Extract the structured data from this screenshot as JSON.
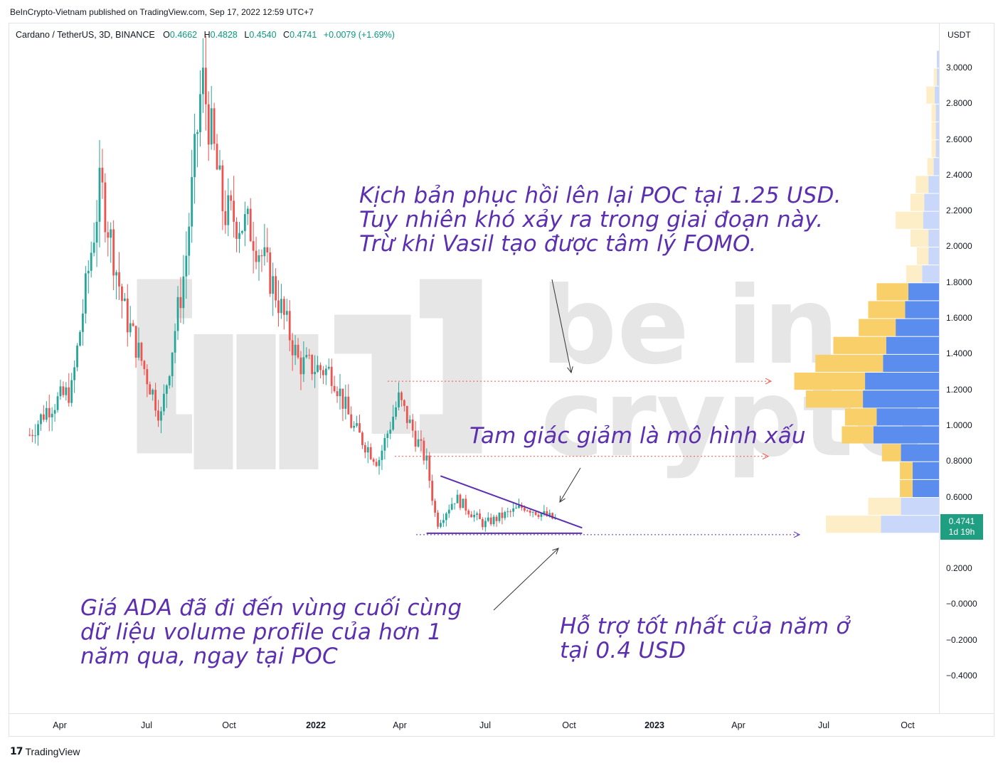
{
  "header": {
    "published_by": "BeInCrypto-Vietnam published on TradingView.com, Sep 17, 2022 12:59 UTC+7"
  },
  "legend": {
    "symbol": "Cardano / TetherUS, 3D, BINANCE",
    "open_label": "O",
    "open": "0.4662",
    "high_label": "H",
    "high": "0.4828",
    "low_label": "L",
    "low": "0.4540",
    "close_label": "C",
    "close": "0.4741",
    "change": "+0.0079 (+1.69%)"
  },
  "colors": {
    "up": "#26a69a",
    "down": "#ef5350",
    "annotation": "#5b2fb0",
    "vp_up": "#5b8def",
    "vp_down": "#f9cf6a",
    "price_tag": "#1f9e82"
  },
  "price_tag": {
    "price": "0.4741",
    "countdown": "1d 19h"
  },
  "annotations": {
    "top": "Kịch bản phục hồi lên lại POC tại 1.25 USD. Tuy nhiên khó xảy ra trong giai đoạn này. Trừ khi Vasil tạo được tâm lý FOMO.",
    "triangle": "Tam giác giảm là mô hình xấu",
    "bottom_left": "Giá ADA đã đi đến vùng cuối cùng dữ liệu volume profile của hơn 1 năm qua, ngay tại POC",
    "bottom_right": "Hỗ trợ tốt nhất của năm ở tại 0.4 USD"
  },
  "footer": {
    "brand": "TradingView"
  },
  "watermark": {
    "text": "be in crypto"
  },
  "chart_data": {
    "type": "candlestick",
    "symbol": "ADAUSDT",
    "interval": "3D",
    "exchange": "BINANCE",
    "currency": "USDT",
    "y_ticks": [
      "3.0000",
      "2.8000",
      "2.6000",
      "2.4000",
      "2.2000",
      "2.0000",
      "1.8000",
      "1.6000",
      "1.4000",
      "1.2000",
      "1.0000",
      "0.8000",
      "0.6000",
      "0.2000",
      "−0.0000",
      "−0.2000",
      "−0.4000"
    ],
    "x_ticks": [
      "Apr",
      "Jul",
      "Oct",
      "2022",
      "Apr",
      "Jul",
      "Oct",
      "2023",
      "Apr",
      "Jul",
      "Oct"
    ],
    "ylim": [
      -0.45,
      3.15
    ],
    "trend_path": [
      {
        "date": "2021-03-01",
        "price": 0.95
      },
      {
        "date": "2021-03-20",
        "price": 1.1
      },
      {
        "date": "2021-04-15",
        "price": 1.2
      },
      {
        "date": "2021-05-16",
        "price": 2.35
      },
      {
        "date": "2021-06-10",
        "price": 1.65
      },
      {
        "date": "2021-07-20",
        "price": 1.05
      },
      {
        "date": "2021-08-15",
        "price": 1.9
      },
      {
        "date": "2021-09-02",
        "price": 2.95
      },
      {
        "date": "2021-09-25",
        "price": 2.2
      },
      {
        "date": "2021-10-25",
        "price": 2.1
      },
      {
        "date": "2021-11-20",
        "price": 1.75
      },
      {
        "date": "2021-12-15",
        "price": 1.35
      },
      {
        "date": "2022-01-20",
        "price": 1.3
      },
      {
        "date": "2022-02-10",
        "price": 1.0
      },
      {
        "date": "2022-03-10",
        "price": 0.8
      },
      {
        "date": "2022-04-01",
        "price": 1.15
      },
      {
        "date": "2022-05-01",
        "price": 0.8
      },
      {
        "date": "2022-05-12",
        "price": 0.45
      },
      {
        "date": "2022-06-01",
        "price": 0.6
      },
      {
        "date": "2022-07-01",
        "price": 0.45
      },
      {
        "date": "2022-08-14",
        "price": 0.55
      },
      {
        "date": "2022-09-17",
        "price": 0.4741
      }
    ],
    "last_close": 0.4741,
    "levels": [
      {
        "name": "poc-line",
        "price": 1.25
      },
      {
        "name": "mid-level",
        "price": 0.83
      },
      {
        "name": "support-line",
        "price": 0.4
      }
    ],
    "triangle": {
      "upper": [
        {
          "date": "2022-05-16",
          "price": 0.72
        },
        {
          "date": "2022-10-15",
          "price": 0.43
        }
      ],
      "lower": [
        {
          "date": "2022-05-01",
          "price": 0.4
        },
        {
          "date": "2022-10-15",
          "price": 0.4
        }
      ]
    },
    "volume_profile": [
      {
        "price": 3.05,
        "up": 0.02,
        "down": 0.0
      },
      {
        "price": 2.95,
        "up": 0.02,
        "down": 0.03
      },
      {
        "price": 2.85,
        "up": 0.04,
        "down": 0.08
      },
      {
        "price": 2.75,
        "up": 0.03,
        "down": 0.04
      },
      {
        "price": 2.65,
        "up": 0.03,
        "down": 0.04
      },
      {
        "price": 2.55,
        "up": 0.03,
        "down": 0.04
      },
      {
        "price": 2.45,
        "up": 0.05,
        "down": 0.06
      },
      {
        "price": 2.35,
        "up": 0.1,
        "down": 0.12
      },
      {
        "price": 2.25,
        "up": 0.14,
        "down": 0.13
      },
      {
        "price": 2.15,
        "up": 0.15,
        "down": 0.26
      },
      {
        "price": 2.05,
        "up": 0.1,
        "down": 0.17
      },
      {
        "price": 1.95,
        "up": 0.1,
        "down": 0.11
      },
      {
        "price": 1.85,
        "up": 0.16,
        "down": 0.15
      },
      {
        "price": 1.75,
        "up": 0.29,
        "down": 0.3
      },
      {
        "price": 1.65,
        "up": 0.32,
        "down": 0.35
      },
      {
        "price": 1.55,
        "up": 0.41,
        "down": 0.35
      },
      {
        "price": 1.45,
        "up": 0.5,
        "down": 0.5
      },
      {
        "price": 1.35,
        "up": 0.53,
        "down": 0.64
      },
      {
        "price": 1.25,
        "up": 0.7,
        "down": 0.67
      },
      {
        "price": 1.15,
        "up": 0.72,
        "down": 0.54
      },
      {
        "price": 1.05,
        "up": 0.59,
        "down": 0.3
      },
      {
        "price": 0.95,
        "up": 0.62,
        "down": 0.3
      },
      {
        "price": 0.85,
        "up": 0.36,
        "down": 0.18
      },
      {
        "price": 0.75,
        "up": 0.25,
        "down": 0.12
      },
      {
        "price": 0.65,
        "up": 0.25,
        "down": 0.12
      },
      {
        "price": 0.55,
        "up": 0.36,
        "down": 0.31
      },
      {
        "price": 0.45,
        "up": 0.55,
        "down": 0.52
      }
    ]
  }
}
